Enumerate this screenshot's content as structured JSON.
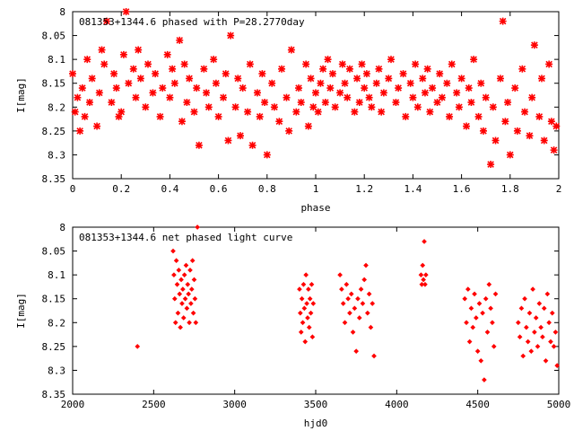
{
  "colors": {
    "point": "#ff0000",
    "axis": "#000000",
    "background": "#ffffff"
  },
  "chart_data": [
    {
      "type": "scatter",
      "title": "081353+1344.6 phased with P=28.2770day",
      "xlabel": "phase",
      "ylabel": "I[mag]",
      "xlim": [
        0,
        2
      ],
      "ylim": [
        8.35,
        8
      ],
      "y_inverted": true,
      "xticks": [
        "0",
        "0.2",
        "0.4",
        "0.6",
        "0.8",
        "1",
        "1.2",
        "1.4",
        "1.6",
        "1.8",
        "2"
      ],
      "yticks": [
        "8",
        "8.05",
        "8.1",
        "8.15",
        "8.2",
        "8.25",
        "8.3",
        "8.35"
      ],
      "marker": "star",
      "grid": false,
      "series": [
        {
          "x": [
            0.0,
            0.01,
            0.02,
            0.03,
            0.04,
            0.05,
            0.06,
            0.07,
            0.08,
            0.1,
            0.11,
            0.12,
            0.13,
            0.14,
            0.16,
            0.17,
            0.18,
            0.19,
            0.2,
            0.21,
            0.22,
            0.23,
            0.25,
            0.26,
            0.27,
            0.28,
            0.3,
            0.31,
            0.33,
            0.34,
            0.36,
            0.37,
            0.39,
            0.4,
            0.41,
            0.42,
            0.44,
            0.45,
            0.46,
            0.47,
            0.48,
            0.5,
            0.51,
            0.52,
            0.54,
            0.55,
            0.56,
            0.58,
            0.59,
            0.6,
            0.62,
            0.63,
            0.64,
            0.65,
            0.67,
            0.68,
            0.69,
            0.7,
            0.72,
            0.73,
            0.74,
            0.76,
            0.77,
            0.78,
            0.79,
            0.8,
            0.82,
            0.83,
            0.85,
            0.86,
            0.88,
            0.89,
            0.9,
            0.92,
            0.93,
            0.94,
            0.96,
            0.97,
            0.98,
            0.99,
            1.0,
            1.01,
            1.02,
            1.03,
            1.04,
            1.05,
            1.06,
            1.07,
            1.08,
            1.1,
            1.11,
            1.12,
            1.13,
            1.14,
            1.16,
            1.17,
            1.18,
            1.19,
            1.2,
            1.21,
            1.22,
            1.23,
            1.25,
            1.26,
            1.27,
            1.28,
            1.3,
            1.31,
            1.33,
            1.34,
            1.36,
            1.37,
            1.39,
            1.4,
            1.41,
            1.42,
            1.44,
            1.45,
            1.46,
            1.47,
            1.48,
            1.5,
            1.51,
            1.52,
            1.54,
            1.55,
            1.56,
            1.58,
            1.59,
            1.6,
            1.62,
            1.63,
            1.64,
            1.65,
            1.67,
            1.68,
            1.69,
            1.7,
            1.72,
            1.73,
            1.74,
            1.76,
            1.77,
            1.78,
            1.79,
            1.8,
            1.82,
            1.83,
            1.85,
            1.86,
            1.88,
            1.89,
            1.9,
            1.92,
            1.93,
            1.94,
            1.96,
            1.97,
            1.98,
            1.99
          ],
          "y": [
            8.13,
            8.21,
            8.18,
            8.25,
            8.16,
            8.22,
            8.1,
            8.19,
            8.14,
            8.24,
            8.17,
            8.08,
            8.11,
            8.02,
            8.19,
            8.13,
            8.16,
            8.22,
            8.21,
            8.09,
            8.0,
            8.15,
            8.12,
            8.18,
            8.08,
            8.14,
            8.2,
            8.11,
            8.17,
            8.13,
            8.22,
            8.16,
            8.09,
            8.18,
            8.12,
            8.15,
            8.06,
            8.23,
            8.11,
            8.19,
            8.14,
            8.21,
            8.16,
            8.28,
            8.12,
            8.17,
            8.2,
            8.1,
            8.15,
            8.22,
            8.18,
            8.13,
            8.27,
            8.05,
            8.2,
            8.14,
            8.26,
            8.16,
            8.21,
            8.11,
            8.28,
            8.17,
            8.22,
            8.13,
            8.19,
            8.3,
            8.15,
            8.2,
            8.23,
            8.12,
            8.18,
            8.25,
            8.08,
            8.21,
            8.16,
            8.19,
            8.11,
            8.24,
            8.14,
            8.2,
            8.17,
            8.21,
            8.15,
            8.12,
            8.19,
            8.1,
            8.16,
            8.13,
            8.2,
            8.17,
            8.11,
            8.15,
            8.18,
            8.12,
            8.21,
            8.14,
            8.19,
            8.11,
            8.16,
            8.13,
            8.18,
            8.2,
            8.15,
            8.12,
            8.21,
            8.17,
            8.14,
            8.1,
            8.19,
            8.16,
            8.13,
            8.22,
            8.15,
            8.18,
            8.11,
            8.2,
            8.14,
            8.17,
            8.12,
            8.21,
            8.16,
            8.19,
            8.13,
            8.18,
            8.15,
            8.22,
            8.11,
            8.17,
            8.2,
            8.14,
            8.24,
            8.16,
            8.19,
            8.1,
            8.22,
            8.15,
            8.25,
            8.18,
            8.32,
            8.2,
            8.27,
            8.14,
            8.02,
            8.23,
            8.19,
            8.3,
            8.16,
            8.25,
            8.12,
            8.21,
            8.26,
            8.18,
            8.07,
            8.22,
            8.14,
            8.27,
            8.11,
            8.23,
            8.29,
            8.24
          ]
        }
      ]
    },
    {
      "type": "scatter",
      "title": "081353+1344.6 net phased light curve",
      "xlabel": "hjd0",
      "ylabel": "I[mag]",
      "xlim": [
        2000,
        5000
      ],
      "ylim": [
        8.35,
        8
      ],
      "y_inverted": true,
      "xticks": [
        "2000",
        "2500",
        "3000",
        "3500",
        "4000",
        "4500",
        "5000"
      ],
      "yticks": [
        "8",
        "8.05",
        "8.1",
        "8.15",
        "8.2",
        "8.25",
        "8.3",
        "8.35"
      ],
      "marker": "diamond",
      "grid": false,
      "series": [
        {
          "x": [
            2400,
            2620,
            2625,
            2630,
            2635,
            2640,
            2645,
            2650,
            2655,
            2660,
            2665,
            2670,
            2675,
            2680,
            2685,
            2690,
            2695,
            2700,
            2705,
            2710,
            2715,
            2720,
            2725,
            2730,
            2735,
            2740,
            2745,
            2750,
            2755,
            2760,
            2770,
            3400,
            3405,
            3410,
            3415,
            3420,
            3425,
            3430,
            3435,
            3440,
            3445,
            3450,
            3455,
            3460,
            3465,
            3470,
            3475,
            3480,
            3485,
            3650,
            3660,
            3670,
            3680,
            3690,
            3700,
            3710,
            3720,
            3730,
            3740,
            3750,
            3760,
            3770,
            3780,
            3790,
            3800,
            3810,
            3820,
            3830,
            3840,
            3850,
            3860,
            4150,
            4155,
            4160,
            4165,
            4170,
            4175,
            4180,
            4420,
            4430,
            4440,
            4450,
            4460,
            4470,
            4480,
            4490,
            4500,
            4510,
            4520,
            4530,
            4540,
            4550,
            4560,
            4570,
            4580,
            4590,
            4600,
            4610,
            4750,
            4760,
            4770,
            4780,
            4790,
            4800,
            4810,
            4820,
            4830,
            4840,
            4850,
            4860,
            4870,
            4880,
            4890,
            4900,
            4910,
            4920,
            4930,
            4940,
            4950,
            4960,
            4970,
            4980,
            4990
          ],
          "y": [
            8.25,
            8.05,
            8.1,
            8.15,
            8.2,
            8.07,
            8.12,
            8.18,
            8.09,
            8.14,
            8.21,
            8.11,
            8.16,
            8.13,
            8.19,
            8.1,
            8.15,
            8.08,
            8.17,
            8.12,
            8.14,
            8.2,
            8.09,
            8.16,
            8.13,
            8.07,
            8.18,
            8.11,
            8.15,
            8.2,
            8.0,
            8.13,
            8.18,
            8.22,
            8.15,
            8.2,
            8.12,
            8.17,
            8.24,
            8.1,
            8.16,
            8.19,
            8.13,
            8.21,
            8.15,
            8.18,
            8.12,
            8.23,
            8.16,
            8.1,
            8.13,
            8.16,
            8.2,
            8.12,
            8.15,
            8.18,
            8.14,
            8.22,
            8.17,
            8.26,
            8.15,
            8.19,
            8.13,
            8.16,
            8.11,
            8.08,
            8.18,
            8.14,
            8.21,
            8.16,
            8.27,
            8.1,
            8.12,
            8.08,
            8.11,
            8.03,
            8.12,
            8.1,
            8.15,
            8.2,
            8.13,
            8.24,
            8.17,
            8.21,
            8.14,
            8.19,
            8.26,
            8.16,
            8.28,
            8.18,
            8.32,
            8.15,
            8.22,
            8.12,
            8.17,
            8.2,
            8.25,
            8.14,
            8.2,
            8.23,
            8.17,
            8.27,
            8.15,
            8.21,
            8.24,
            8.18,
            8.26,
            8.13,
            8.22,
            8.19,
            8.25,
            8.16,
            8.21,
            8.23,
            8.17,
            8.28,
            8.14,
            8.2,
            8.24,
            8.18,
            8.25,
            8.22,
            8.29
          ]
        }
      ]
    }
  ]
}
